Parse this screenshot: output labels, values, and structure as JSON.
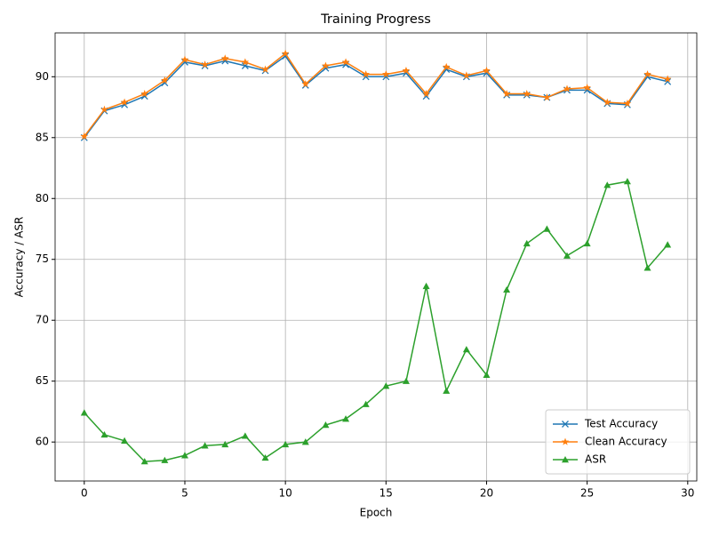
{
  "chart_data": {
    "type": "line",
    "title": "Training Progress",
    "x_label": "Epoch",
    "y_label": "Accuracy / ASR",
    "x": [
      0,
      1,
      2,
      3,
      4,
      5,
      6,
      7,
      8,
      9,
      10,
      11,
      12,
      13,
      14,
      15,
      16,
      17,
      18,
      19,
      20,
      21,
      22,
      23,
      24,
      25,
      26,
      27,
      28,
      29
    ],
    "series": [
      {
        "name": "Test Accuracy",
        "color": "#1f77b4",
        "marker": "x",
        "values": [
          85.0,
          87.2,
          87.7,
          88.4,
          89.5,
          91.2,
          90.9,
          91.3,
          90.9,
          90.5,
          91.7,
          89.3,
          90.7,
          91.0,
          90.0,
          90.0,
          90.3,
          88.4,
          90.6,
          90.0,
          90.3,
          88.5,
          88.5,
          88.3,
          88.9,
          88.9,
          87.8,
          87.7,
          90.0,
          89.6
        ]
      },
      {
        "name": "Clean Accuracy",
        "color": "#ff7f0e",
        "marker": "star",
        "values": [
          85.1,
          87.3,
          87.9,
          88.6,
          89.7,
          91.4,
          91.0,
          91.5,
          91.2,
          90.6,
          91.9,
          89.4,
          90.9,
          91.2,
          90.2,
          90.2,
          90.5,
          88.6,
          90.8,
          90.1,
          90.5,
          88.6,
          88.6,
          88.3,
          89.0,
          89.1,
          87.9,
          87.8,
          90.2,
          89.8
        ]
      },
      {
        "name": "ASR",
        "color": "#2ca02c",
        "marker": "triangle",
        "values": [
          62.4,
          60.6,
          60.1,
          58.4,
          58.5,
          58.9,
          59.7,
          59.8,
          60.5,
          58.7,
          59.8,
          60.0,
          61.4,
          61.9,
          63.1,
          64.6,
          65.0,
          72.8,
          64.2,
          67.6,
          65.5,
          72.5,
          76.3,
          77.5,
          75.3,
          76.3,
          81.1,
          81.4,
          74.3,
          76.2
        ]
      }
    ],
    "xlim": [
      -1.45,
      30.45
    ],
    "xticks": [
      0,
      5,
      10,
      15,
      20,
      25,
      30
    ],
    "ylim": [
      56.8,
      93.6
    ],
    "yticks": [
      60,
      65,
      70,
      75,
      80,
      85,
      90
    ],
    "grid": true,
    "legend": "lower right"
  }
}
